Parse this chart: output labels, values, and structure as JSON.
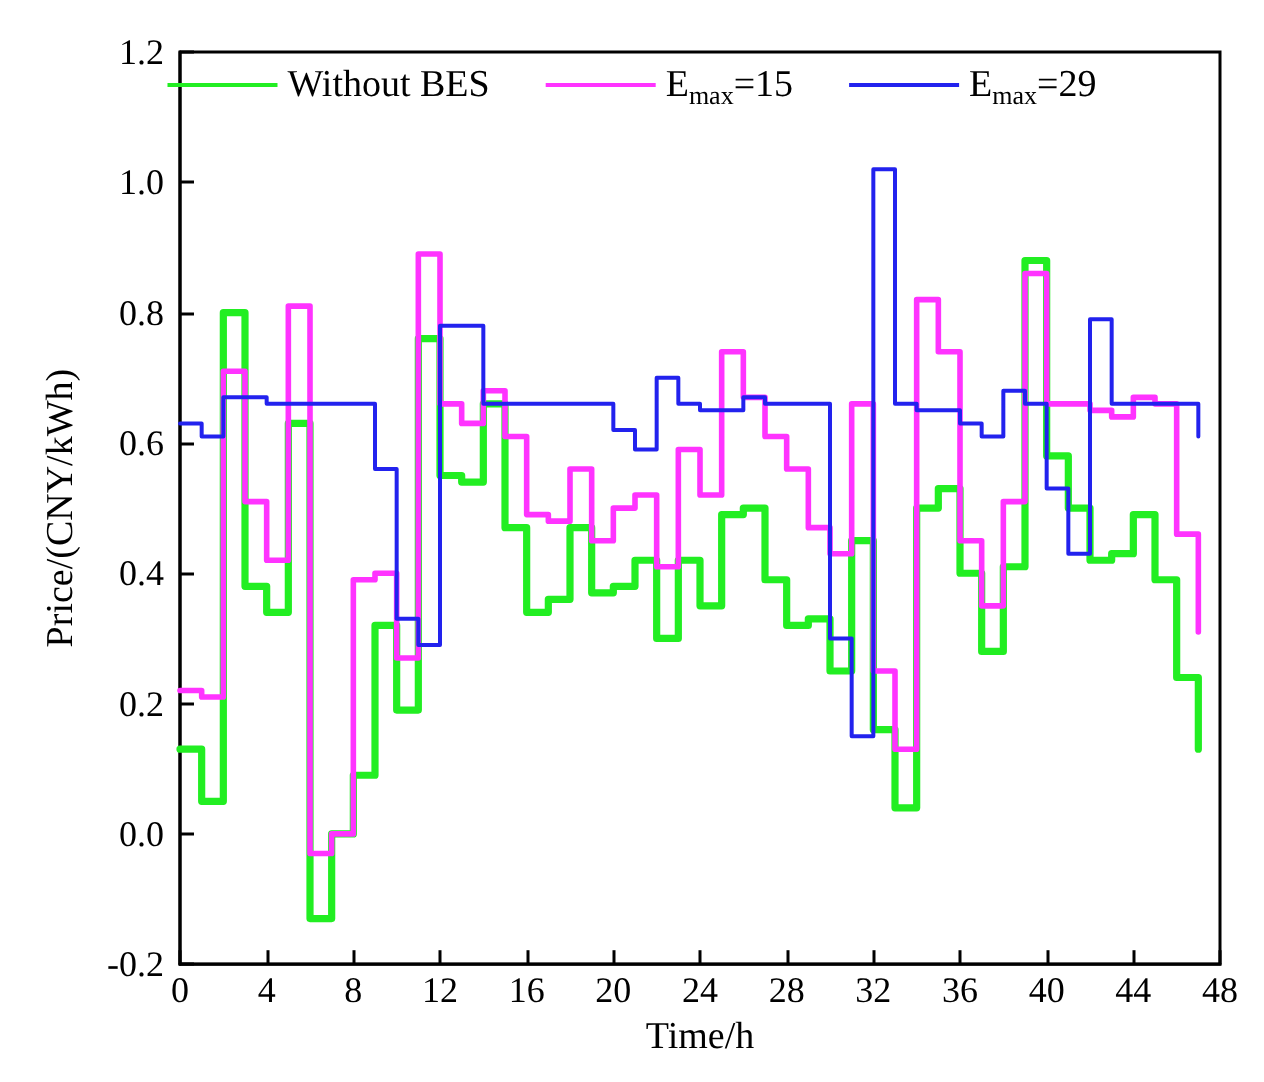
{
  "chart_data": {
    "type": "step",
    "xlabel": "Time/h",
    "ylabel": "Price/(CNY/kWh)",
    "x": [
      0,
      1,
      2,
      3,
      4,
      5,
      6,
      7,
      8,
      9,
      10,
      11,
      12,
      13,
      14,
      15,
      16,
      17,
      18,
      19,
      20,
      21,
      22,
      23,
      24,
      25,
      26,
      27,
      28,
      29,
      30,
      31,
      32,
      33,
      34,
      35,
      36,
      37,
      38,
      39,
      40,
      41,
      42,
      43,
      44,
      45,
      46,
      47
    ],
    "series": [
      {
        "name": "Without BES",
        "color": "#22ee22",
        "values": [
          0.13,
          0.05,
          0.8,
          0.38,
          0.34,
          0.63,
          -0.13,
          0.0,
          0.09,
          0.32,
          0.19,
          0.76,
          0.55,
          0.54,
          0.66,
          0.47,
          0.34,
          0.36,
          0.47,
          0.37,
          0.38,
          0.42,
          0.3,
          0.42,
          0.35,
          0.49,
          0.5,
          0.39,
          0.32,
          0.33,
          0.25,
          0.45,
          0.16,
          0.04,
          0.5,
          0.53,
          0.4,
          0.28,
          0.41,
          0.88,
          0.58,
          0.5,
          0.42,
          0.43,
          0.49,
          0.39,
          0.24,
          0.13
        ]
      },
      {
        "name": "E$_{max}$=15",
        "color": "#ff33ff",
        "values": [
          0.22,
          0.21,
          0.71,
          0.51,
          0.42,
          0.81,
          -0.03,
          0.0,
          0.39,
          0.4,
          0.27,
          0.89,
          0.66,
          0.63,
          0.68,
          0.61,
          0.49,
          0.48,
          0.56,
          0.45,
          0.5,
          0.52,
          0.41,
          0.59,
          0.52,
          0.74,
          0.67,
          0.61,
          0.56,
          0.47,
          0.43,
          0.66,
          0.25,
          0.13,
          0.82,
          0.74,
          0.45,
          0.35,
          0.51,
          0.86,
          0.66,
          0.66,
          0.65,
          0.64,
          0.67,
          0.66,
          0.46,
          0.31
        ]
      },
      {
        "name": "E$_{max}$=29",
        "color": "#2222ee",
        "values": [
          0.63,
          0.61,
          0.67,
          0.67,
          0.66,
          0.66,
          0.66,
          0.66,
          0.66,
          0.56,
          0.33,
          0.29,
          0.78,
          0.78,
          0.66,
          0.66,
          0.66,
          0.66,
          0.66,
          0.66,
          0.62,
          0.59,
          0.7,
          0.66,
          0.65,
          0.65,
          0.67,
          0.66,
          0.66,
          0.66,
          0.3,
          0.15,
          1.02,
          0.66,
          0.65,
          0.65,
          0.63,
          0.61,
          0.68,
          0.66,
          0.53,
          0.43,
          0.79,
          0.66,
          0.66,
          0.66,
          0.66,
          0.61
        ]
      }
    ],
    "xlim": [
      0,
      48
    ],
    "xticks": [
      0,
      4,
      8,
      12,
      16,
      20,
      24,
      28,
      32,
      36,
      40,
      44,
      48
    ],
    "ylim": [
      -0.2,
      1.2
    ],
    "yticks": [
      -0.2,
      {
        "value": 0,
        "label": "0.0"
      },
      0.2,
      0.4,
      0.6,
      0.8,
      {
        "value": 1,
        "label": "1.0"
      },
      1.2
    ],
    "grid": false,
    "legend": "top",
    "marker": "none",
    "line_style": "solid"
  }
}
